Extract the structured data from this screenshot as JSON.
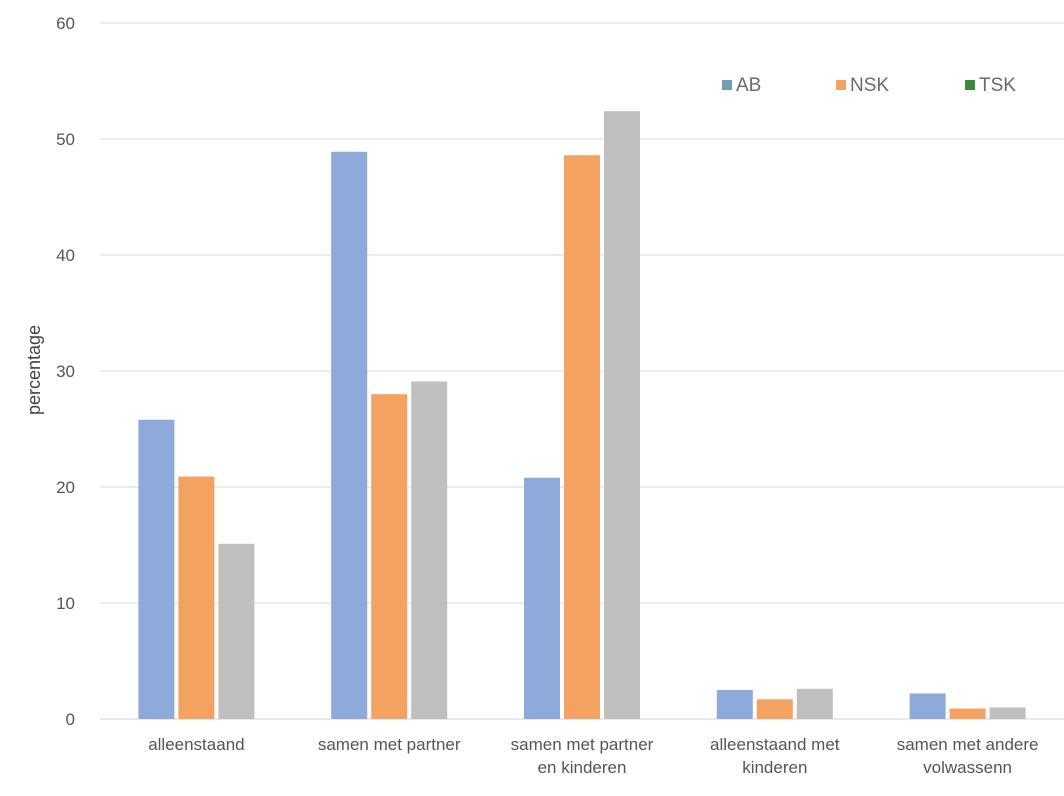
{
  "chart_data": {
    "type": "bar",
    "categories": [
      [
        "alleenstaand"
      ],
      [
        "samen met partner"
      ],
      [
        "samen met partner",
        "en kinderen"
      ],
      [
        "alleenstaand met",
        "kinderen"
      ],
      [
        "samen met andere",
        "volwassenn"
      ]
    ],
    "series": [
      {
        "name": "AB",
        "color": "#8eaadb",
        "values": [
          25.8,
          48.9,
          20.8,
          2.5,
          2.2
        ]
      },
      {
        "name": "NSK",
        "color": "#f4a261",
        "values": [
          20.9,
          28.0,
          48.6,
          1.7,
          0.9
        ]
      },
      {
        "name": "TSK",
        "color": "#bfbfbf",
        "values": [
          15.1,
          29.1,
          52.4,
          2.6,
          1.0
        ]
      }
    ],
    "legend": [
      {
        "name": "AB",
        "swatch": "#6f9fb8"
      },
      {
        "name": "NSK",
        "swatch": "#f4a261"
      },
      {
        "name": "TSK",
        "swatch": "#3a8a3a"
      }
    ],
    "legend_position": "top-right",
    "title": "",
    "xlabel": "",
    "ylabel": "percentage",
    "ylim": [
      0,
      60
    ],
    "yticks": [
      0,
      10,
      20,
      30,
      40,
      50,
      60
    ],
    "grid": true
  }
}
